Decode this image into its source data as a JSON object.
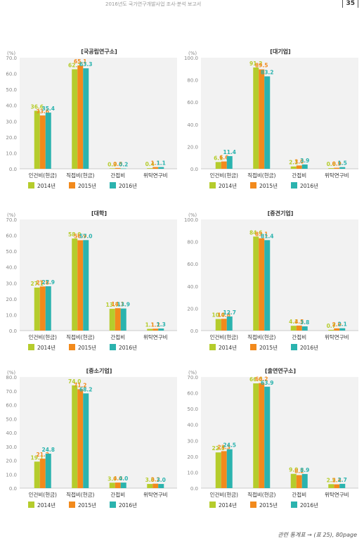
{
  "header": {
    "text": "2016년도 국가연구개발사업 조사·분석 보고서",
    "page_number": "35"
  },
  "footer": {
    "text": "관련 통계표 → (표 25), 80page"
  },
  "colors": {
    "2014년": "#b5cc2c",
    "2015년": "#f28a1c",
    "2016년": "#2bb3ae"
  },
  "chart_data": [
    {
      "type": "bar",
      "title": "[국공립연구소]",
      "ylabel": "(%)",
      "ylim": [
        0,
        70
      ],
      "yticks": [
        "70.0",
        "60.0",
        "50.0",
        "40.0",
        "30.0",
        "20.0",
        "10.0",
        "0.0"
      ],
      "categories": [
        "인건비(현금)",
        "직접비(현금)",
        "간접비",
        "위탁연구비"
      ],
      "series": [
        {
          "name": "2014년",
          "values": [
            36.6,
            62.7,
            0.3,
            0.4
          ]
        },
        {
          "name": "2015년",
          "values": [
            33.6,
            65.1,
            0.5,
            1.1
          ]
        },
        {
          "name": "2016년",
          "values": [
            35.4,
            63.3,
            0.2,
            1.1
          ]
        }
      ]
    },
    {
      "type": "bar",
      "title": "[대기업]",
      "ylabel": "(%)",
      "ylim": [
        0,
        100
      ],
      "yticks": [
        "100.0",
        "80.0",
        "60.0",
        "40.0",
        "20.0",
        "0.0"
      ],
      "categories": [
        "인건비(현금)",
        "직접비(현금)",
        "간접비",
        "위탁연구비"
      ],
      "series": [
        {
          "name": "2014년",
          "values": [
            6.1,
            91.2,
            2.1,
            0.6
          ]
        },
        {
          "name": "2015년",
          "values": [
            6.6,
            89.5,
            3.0,
            0.9
          ]
        },
        {
          "name": "2016년",
          "values": [
            11.4,
            83.2,
            3.9,
            1.5
          ]
        }
      ]
    },
    {
      "type": "bar",
      "title": "[대학]",
      "ylabel": "(%)",
      "ylim": [
        0,
        70
      ],
      "yticks": [
        "70.0",
        "60.0",
        "50.0",
        "40.0",
        "30.0",
        "20.0",
        "10.0",
        "0.0"
      ],
      "categories": [
        "인건비(현금)",
        "직접비(현금)",
        "간접비",
        "위탁연구비"
      ],
      "series": [
        {
          "name": "2014년",
          "values": [
            27.1,
            58.0,
            13.7,
            1.1
          ]
        },
        {
          "name": "2015년",
          "values": [
            27.8,
            56.9,
            14.1,
            1.2
          ]
        },
        {
          "name": "2016년",
          "values": [
            27.9,
            57.0,
            13.9,
            1.3
          ]
        }
      ]
    },
    {
      "type": "bar",
      "title": "[중견기업]",
      "ylabel": "(%)",
      "ylim": [
        0,
        100
      ],
      "yticks": [
        "100.0",
        "80.0",
        "60.0",
        "40.0",
        "20.0",
        "0.0"
      ],
      "categories": [
        "인건비(현금)",
        "직접비(현금)",
        "간접비",
        "위탁연구비"
      ],
      "series": [
        {
          "name": "2014년",
          "values": [
            10.4,
            84.6,
            4.3,
            0.7
          ]
        },
        {
          "name": "2015년",
          "values": [
            10.6,
            83.1,
            4.5,
            2.0
          ]
        },
        {
          "name": "2016년",
          "values": [
            12.7,
            81.4,
            3.8,
            2.1
          ]
        }
      ]
    },
    {
      "type": "bar",
      "title": "[중소기업]",
      "ylabel": "(%)",
      "ylim": [
        0,
        80
      ],
      "yticks": [
        "80.0",
        "70.0",
        "60.0",
        "50.0",
        "40.0",
        "30.0",
        "20.0",
        "10.0",
        "0.0"
      ],
      "categories": [
        "인건비(현금)",
        "직접비(현금)",
        "간접비",
        "위탁연구비"
      ],
      "series": [
        {
          "name": "2014년",
          "values": [
            19.1,
            74.0,
            3.9,
            3.0
          ]
        },
        {
          "name": "2015년",
          "values": [
            21.2,
            71.2,
            4.0,
            3.2
          ]
        },
        {
          "name": "2016년",
          "values": [
            24.8,
            68.2,
            4.0,
            3.0
          ]
        }
      ]
    },
    {
      "type": "bar",
      "title": "[출연연구소]",
      "ylabel": "(%)",
      "ylim": [
        0,
        70
      ],
      "yticks": [
        "70.0",
        "60.0",
        "50.0",
        "40.0",
        "30.0",
        "20.0",
        "10.0",
        "0.0"
      ],
      "categories": [
        "인건비(현금)",
        "직접비(현금)",
        "간접비",
        "위탁연구비"
      ],
      "series": [
        {
          "name": "2014년",
          "values": [
            22.5,
            66.0,
            9.0,
            2.5
          ]
        },
        {
          "name": "2015년",
          "values": [
            23.3,
            66.2,
            8.2,
            2.4
          ]
        },
        {
          "name": "2016년",
          "values": [
            24.5,
            63.9,
            8.9,
            2.7
          ]
        }
      ]
    }
  ]
}
